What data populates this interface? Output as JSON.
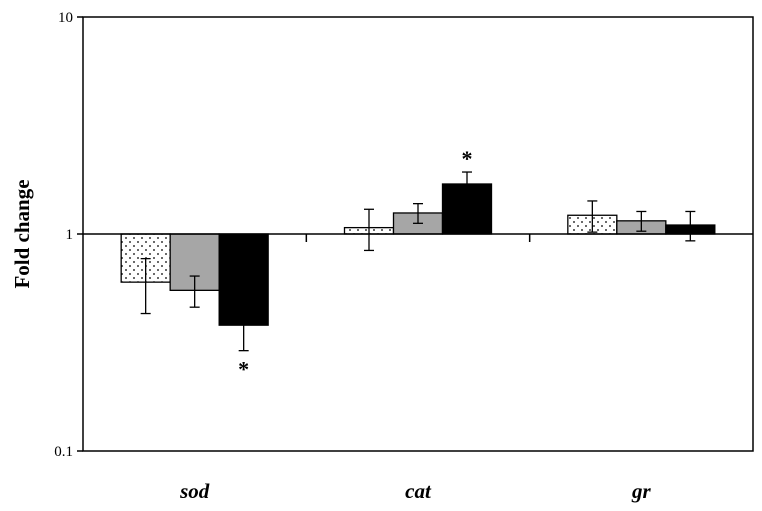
{
  "chart_data": {
    "type": "bar",
    "title": "",
    "xlabel": "",
    "ylabel": "Fold change",
    "yscale": "log",
    "ylim": [
      0.1,
      10
    ],
    "baseline": 1,
    "yticks": [
      {
        "value": 0.1,
        "label": "0.1"
      },
      {
        "value": 1,
        "label": "1"
      },
      {
        "value": 10,
        "label": "10"
      }
    ],
    "categories": [
      "sod",
      "cat",
      "gr"
    ],
    "series": [
      {
        "values": [
          0.6,
          1.07,
          1.22
        ],
        "errors": [
          0.17,
          0.23,
          0.2
        ],
        "fill": "dotted",
        "color": "#ffffff"
      },
      {
        "values": [
          0.55,
          1.25,
          1.15
        ],
        "errors": [
          0.09,
          0.13,
          0.12
        ],
        "fill": "solid",
        "color": "#a6a6a6"
      },
      {
        "values": [
          0.38,
          1.7,
          1.1
        ],
        "errors": [
          0.09,
          0.23,
          0.17
        ],
        "fill": "solid",
        "color": "#000000"
      }
    ],
    "significance": [
      {
        "category": "sod",
        "series_index": 2,
        "label": "*"
      },
      {
        "category": "cat",
        "series_index": 2,
        "label": "*"
      }
    ],
    "grid": false,
    "legend": "none"
  }
}
